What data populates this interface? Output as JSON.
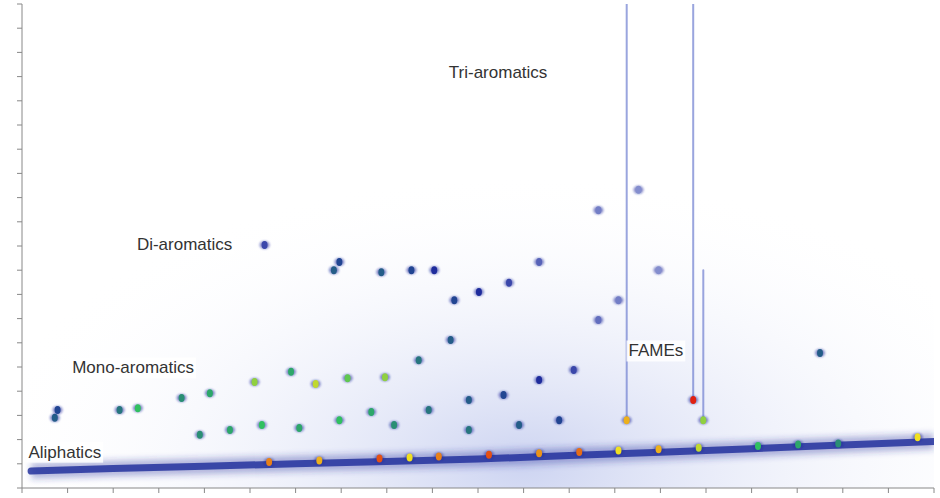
{
  "chart_data": {
    "type": "scatter",
    "tick_labels": false,
    "xlim": [
      0,
      100
    ],
    "ylim": [
      0,
      100
    ],
    "xticks": [
      0,
      5,
      10,
      15,
      20,
      25,
      30,
      35,
      40,
      45,
      50,
      55,
      60,
      65,
      70,
      75,
      80,
      85,
      90,
      95,
      100
    ],
    "yticks": [
      0,
      5,
      10,
      15,
      20,
      25,
      30,
      35,
      40,
      45,
      50,
      55,
      60,
      65,
      70,
      75,
      80,
      85,
      90,
      95,
      100
    ],
    "color_range": [
      0,
      100
    ],
    "annotations": [
      {
        "text": "Tri-aromatics",
        "x": 46.8,
        "y": 85.7
      },
      {
        "text": "Di-aromatics",
        "x": 12.6,
        "y": 50.2
      },
      {
        "text": "Mono-aromatics",
        "x": 5.5,
        "y": 24.6
      },
      {
        "text": "Aliphatics",
        "x": 0.7,
        "y": 7.2
      },
      {
        "text": "FAMEs",
        "x": 66.5,
        "y": 28.1
      }
    ],
    "series": [
      {
        "type": "scatter",
        "marker": "ellipse",
        "x": [
          3.6,
          3.9,
          10.7,
          12.7,
          17.5,
          20.6,
          25.5,
          29.5,
          32.2,
          35.7,
          39.8,
          43.5,
          47.0,
          26.6,
          34.2,
          34.8,
          39.4,
          42.7,
          45.2,
          47.4,
          50.1,
          53.4,
          56.7,
          19.5,
          22.8,
          26.3,
          30.4,
          34.8,
          38.3,
          40.8,
          44.6,
          49.0,
          52.8,
          56.7,
          60.5,
          49.0,
          54.5,
          58.9,
          63.2,
          67.6,
          63.2,
          65.4,
          69.8,
          87.5,
          27.1,
          32.6,
          39.2,
          42.5,
          45.7,
          51.2,
          56.7,
          61.1,
          65.4,
          69.8,
          74.2,
          80.7,
          85.1,
          89.5,
          98.2,
          73.6,
          66.3,
          74.7
        ],
        "values": [
          14.5,
          16.1,
          16.1,
          16.5,
          18.6,
          19.6,
          21.9,
          24.0,
          21.5,
          22.7,
          22.9,
          26.4,
          30.6,
          50.2,
          45.0,
          46.7,
          44.6,
          45.0,
          45.0,
          38.8,
          40.5,
          42.4,
          46.7,
          11.0,
          12.0,
          13.0,
          12.4,
          14.0,
          15.7,
          13.0,
          16.1,
          18.2,
          19.2,
          22.3,
          24.4,
          12.0,
          13.0,
          14.0,
          57.4,
          61.6,
          34.7,
          38.8,
          45.0,
          27.9,
          5.35,
          5.7,
          6.1,
          6.3,
          6.5,
          6.85,
          7.2,
          7.45,
          7.75,
          8.0,
          8.3,
          8.7,
          9.0,
          9.2,
          10.5,
          18.2,
          14.0,
          14.0
        ],
        "intensity": [
          40,
          35,
          45,
          60,
          50,
          55,
          70,
          55,
          75,
          65,
          70,
          45,
          40,
          25,
          40,
          35,
          40,
          35,
          30,
          35,
          30,
          25,
          20,
          50,
          55,
          60,
          55,
          60,
          55,
          50,
          45,
          40,
          35,
          30,
          25,
          45,
          40,
          35,
          15,
          12,
          18,
          15,
          12,
          40,
          90,
          85,
          95,
          80,
          90,
          95,
          88,
          92,
          80,
          85,
          75,
          60,
          55,
          50,
          80,
          100,
          85,
          70
        ]
      },
      {
        "type": "line",
        "color": "#24329e",
        "x": [
          1,
          10,
          20,
          30,
          40,
          50,
          60,
          70,
          80,
          90,
          100
        ],
        "values": [
          3.5,
          4.0,
          4.5,
          5.0,
          5.5,
          6.0,
          6.7,
          7.4,
          8.1,
          8.9,
          9.6
        ]
      },
      {
        "type": "line",
        "color": "#6f7fd0",
        "x": [
          66.3,
          66.3,
          66.3,
          73.6,
          73.6,
          73.6,
          74.7,
          74.7
        ],
        "values": [
          14.0,
          100,
          null,
          18.2,
          100,
          null,
          14.0,
          45.0
        ]
      }
    ]
  }
}
